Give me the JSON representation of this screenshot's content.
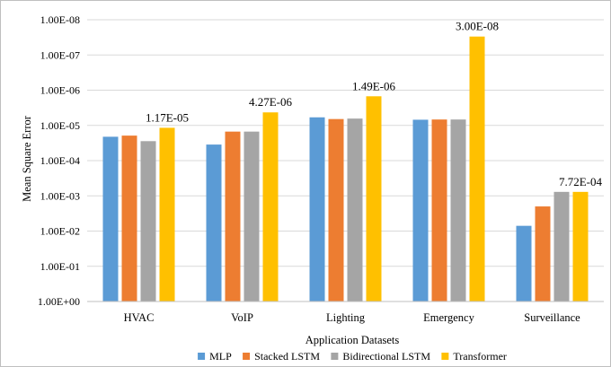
{
  "chart_data": {
    "type": "bar",
    "title": "",
    "xlabel": "Application Datasets",
    "ylabel": "Mean Square Error",
    "y_scale": "log",
    "y_reversed": true,
    "ylim": [
      1,
      1e-08
    ],
    "y_ticks": [
      "1.00E-08",
      "1.00E-07",
      "1.00E-06",
      "1.00E-05",
      "1.00E-04",
      "1.00E-03",
      "1.00E-02",
      "1.00E-01",
      "1.00E+00"
    ],
    "grid": true,
    "legend_position": "bottom",
    "categories": [
      "HVAC",
      "VoIP",
      "Lighting",
      "Emergency",
      "Surveillance"
    ],
    "series": [
      {
        "name": "MLP",
        "color": "#5b9bd5",
        "values": [
          2.1e-05,
          3.5e-05,
          5.9e-06,
          6.9e-06,
          0.0071
        ]
      },
      {
        "name": "Stacked LSTM",
        "color": "#ed7d31",
        "values": [
          1.95e-05,
          1.5e-05,
          6.6e-06,
          6.8e-06,
          0.002
        ]
      },
      {
        "name": "Bidirectional LSTM",
        "color": "#a5a5a5",
        "values": [
          2.8e-05,
          1.5e-05,
          6.4e-06,
          6.8e-06,
          0.000772
        ]
      },
      {
        "name": "Transformer",
        "color": "#ffc000",
        "values": [
          1.17e-05,
          4.27e-06,
          1.49e-06,
          3e-08,
          0.000772
        ]
      }
    ],
    "data_labels": [
      {
        "category": "HVAC",
        "series": "Transformer",
        "text": "1.17E-05"
      },
      {
        "category": "VoIP",
        "series": "Transformer",
        "text": "4.27E-06"
      },
      {
        "category": "Lighting",
        "series": "Transformer",
        "text": "1.49E-06"
      },
      {
        "category": "Emergency",
        "series": "Transformer",
        "text": "3.00E-08"
      },
      {
        "category": "Surveillance",
        "series": "Transformer",
        "text": "7.72E-04"
      }
    ]
  },
  "colors": {
    "gridline": "#d9d9d9",
    "axis": "#bfbfbf",
    "frame": "#bfbfbf"
  }
}
